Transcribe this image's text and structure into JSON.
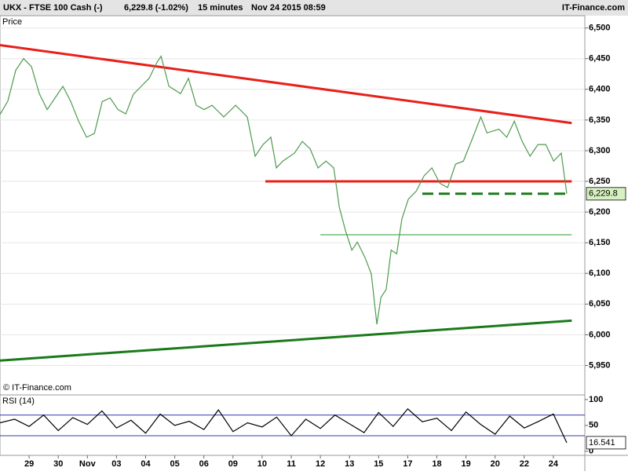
{
  "header": {
    "instrument": "UKX - FTSE 100 Cash (-)",
    "quote": "6,229.8 (-1.02%)",
    "interval": "15 minutes",
    "timestamp": "Nov 24 2015 08:59",
    "brand": "IT-Finance.com",
    "copyright": "© IT-Finance.com"
  },
  "chart_data": [
    {
      "type": "line",
      "title": "Price",
      "color": "#4e9a4e",
      "x": [
        -1.0,
        -0.73,
        -0.46,
        -0.19,
        0.08,
        0.35,
        0.62,
        0.89,
        1.16,
        1.43,
        1.7,
        1.97,
        2.24,
        2.51,
        2.78,
        3.05,
        3.32,
        3.58,
        3.85,
        4.12,
        4.39,
        4.53,
        4.8,
        5.2,
        5.47,
        5.74,
        6.01,
        6.28,
        6.68,
        7.09,
        7.49,
        7.76,
        8.03,
        8.3,
        8.49,
        8.71,
        9.11,
        9.38,
        9.65,
        9.92,
        10.19,
        10.46,
        10.65,
        10.86,
        11.08,
        11.27,
        11.54,
        11.75,
        11.94,
        12.08,
        12.26,
        12.43,
        12.62,
        12.8,
        13.02,
        13.29,
        13.56,
        13.83,
        14.1,
        14.37,
        14.64,
        14.91,
        15.18,
        15.51,
        15.72,
        16.13,
        16.4,
        16.66,
        16.93,
        17.2,
        17.47,
        17.74,
        18.01,
        18.27,
        18.46
      ],
      "values": [
        6359,
        6381,
        6431,
        6450,
        6437,
        6393,
        6367,
        6386,
        6405,
        6380,
        6348,
        6322,
        6328,
        6380,
        6386,
        6367,
        6360,
        6392,
        6405,
        6418,
        6444,
        6454,
        6405,
        6393,
        6418,
        6374,
        6367,
        6374,
        6355,
        6374,
        6355,
        6291,
        6310,
        6322,
        6272,
        6283,
        6296,
        6315,
        6303,
        6272,
        6283,
        6272,
        6208,
        6170,
        6138,
        6151,
        6125,
        6099,
        6017,
        6061,
        6074,
        6138,
        6132,
        6189,
        6221,
        6234,
        6259,
        6272,
        6247,
        6240,
        6278,
        6283,
        6315,
        6355,
        6329,
        6335,
        6322,
        6348,
        6315,
        6291,
        6310,
        6310,
        6283,
        6296,
        6230
      ],
      "trend_lines": [
        {
          "x": [
            -1,
            18.63
          ],
          "values": [
            6472,
            6345
          ],
          "color": "#e8201a",
          "width": 3,
          "dashed": false
        },
        {
          "x": [
            8.11,
            18.63
          ],
          "values": [
            6250,
            6250
          ],
          "color": "#e8201a",
          "width": 3,
          "dashed": false
        },
        {
          "x": [
            13.5,
            18.46
          ],
          "values": [
            6229.8,
            6229.8
          ],
          "color": "#1a7a1a",
          "width": 3,
          "dashed": true
        },
        {
          "x": [
            10.0,
            18.63
          ],
          "values": [
            6163,
            6163
          ],
          "color": "#2a9a2a",
          "width": 1,
          "dashed": false
        },
        {
          "x": [
            -1,
            18.63
          ],
          "values": [
            5958,
            6023
          ],
          "color": "#1a7a1a",
          "width": 3,
          "dashed": false
        }
      ],
      "last": {
        "value": 6229.8,
        "label": "6,229.8"
      },
      "xlim": [
        -1,
        19.08
      ],
      "ylim": [
        5902,
        6520
      ],
      "grid": true,
      "yticks": [
        {
          "value": 5950,
          "label": "5,950"
        },
        {
          "value": 6000,
          "label": "6,000"
        },
        {
          "value": 6050,
          "label": "6,050"
        },
        {
          "value": 6100,
          "label": "6,100"
        },
        {
          "value": 6150,
          "label": "6,150"
        },
        {
          "value": 6200,
          "label": "6,200"
        },
        {
          "value": 6250,
          "label": "6,250"
        },
        {
          "value": 6300,
          "label": "6,300"
        },
        {
          "value": 6350,
          "label": "6,350"
        },
        {
          "value": 6400,
          "label": "6,400"
        },
        {
          "value": 6450,
          "label": "6,450"
        },
        {
          "value": 6500,
          "label": "6,500"
        }
      ]
    },
    {
      "type": "line",
      "title": "RSI (14)",
      "color": "#000000",
      "x": [
        -1,
        -0.5,
        0,
        0.5,
        1,
        1.5,
        2,
        2.5,
        3,
        3.5,
        4,
        4.5,
        5,
        5.5,
        6,
        6.5,
        7,
        7.5,
        8,
        8.5,
        9,
        9.5,
        10,
        10.5,
        11,
        11.5,
        12,
        12.5,
        13,
        13.5,
        14,
        14.5,
        15,
        15.5,
        16,
        16.5,
        17,
        17.5,
        18,
        18.46
      ],
      "values": [
        55,
        62,
        48,
        70,
        40,
        65,
        52,
        78,
        45,
        60,
        35,
        72,
        50,
        58,
        42,
        80,
        38,
        55,
        47,
        66,
        30,
        62,
        44,
        70,
        53,
        36,
        75,
        48,
        82,
        57,
        64,
        40,
        76,
        52,
        33,
        68,
        45,
        58,
        72,
        16.541
      ],
      "levels": [
        70,
        30
      ],
      "level_color": "#3a3ab0",
      "last": {
        "value": 16.541,
        "label": "16.541"
      },
      "xlim": [
        -1,
        19.08
      ],
      "ylim": [
        -8,
        109
      ],
      "yticks": [
        0,
        50,
        100
      ],
      "xticks": [
        {
          "value": 0,
          "label": "29"
        },
        {
          "value": 1,
          "label": "30"
        },
        {
          "value": 2,
          "label": "Nov"
        },
        {
          "value": 3,
          "label": "03"
        },
        {
          "value": 4,
          "label": "04"
        },
        {
          "value": 5,
          "label": "05"
        },
        {
          "value": 6,
          "label": "06"
        },
        {
          "value": 7,
          "label": "09"
        },
        {
          "value": 8,
          "label": "10"
        },
        {
          "value": 9,
          "label": "11"
        },
        {
          "value": 10,
          "label": "12"
        },
        {
          "value": 11,
          "label": "13"
        },
        {
          "value": 12,
          "label": "15"
        },
        {
          "value": 13,
          "label": "17"
        },
        {
          "value": 14,
          "label": "18"
        },
        {
          "value": 15,
          "label": "19"
        },
        {
          "value": 16,
          "label": "20"
        },
        {
          "value": 17,
          "label": "22"
        },
        {
          "value": 18,
          "label": "24"
        }
      ]
    }
  ]
}
